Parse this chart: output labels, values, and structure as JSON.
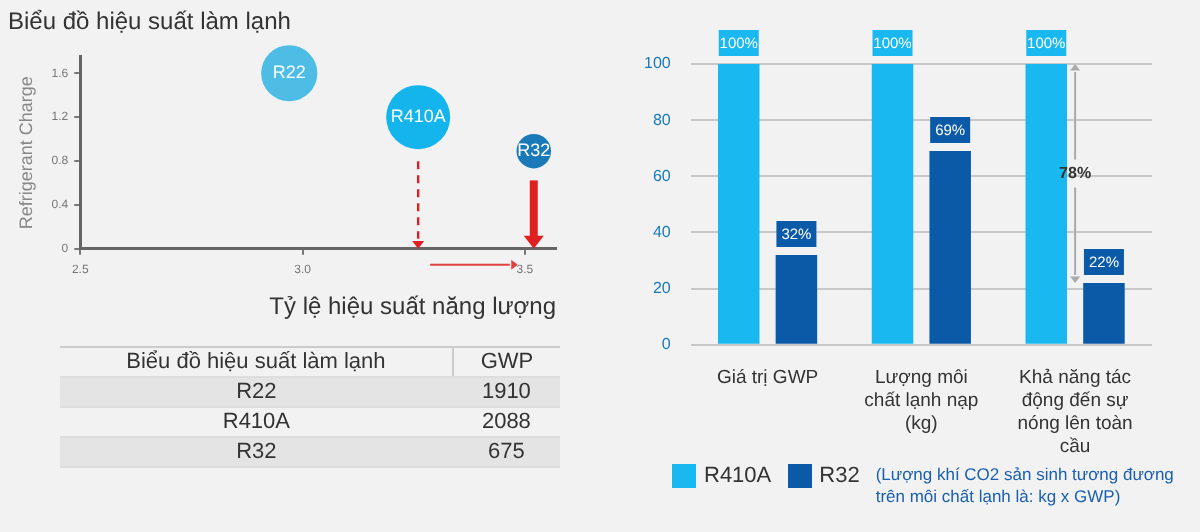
{
  "chart_data": [
    {
      "type": "bubble",
      "title": "Biểu đồ hiệu suất làm lạnh",
      "xlabel": "Tỷ lệ hiệu suất năng lượng",
      "ylabel": "Refrigerant Charge",
      "xlim": [
        2.5,
        3.57
      ],
      "xticks": [
        {
          "value": 2.5,
          "label": "2.5"
        },
        {
          "value": 3,
          "label": "3.0"
        },
        {
          "value": 3.5,
          "label": "3.5"
        }
      ],
      "ylim": [
        0,
        1.75
      ],
      "yticks": [
        0,
        0.4,
        0.8,
        1.2,
        1.6
      ],
      "grid": false,
      "legend": false,
      "series": [
        {
          "name": "R22",
          "color": "#4dbde6",
          "x": [
            2.97
          ],
          "values": [
            1.6
          ],
          "sizes": [
            0.77
          ]
        },
        {
          "name": "R410A",
          "color": "#14b4ec",
          "x": [
            3.26
          ],
          "values": [
            1.2
          ],
          "sizes": [
            1
          ]
        },
        {
          "name": "R32",
          "color": "#1a7ab8",
          "x": [
            3.52
          ],
          "values": [
            0.89
          ],
          "sizes": [
            0.29
          ]
        }
      ]
    },
    {
      "type": "other",
      "data_labels": true,
      "xlabel": "Biểu đồ hiệu suất làm lạnh",
      "ylabel": "GWP",
      "categories": [
        "R22",
        "R410A",
        "R32"
      ],
      "values": [
        1910,
        2088,
        675
      ]
    },
    {
      "type": "bar",
      "categories": [
        "Giá trị GWP",
        "Lượng môi chất lạnh nạp (kg)",
        "Khả năng tác động đến sự nóng lên toàn cầu"
      ],
      "ylim": [
        0,
        100
      ],
      "yticks": [
        0,
        20,
        40,
        60,
        80,
        100
      ],
      "grid": "y",
      "legend": "bottom",
      "series": [
        {
          "name": "R410A",
          "color": "#1ab8f0",
          "values": [
            100,
            100,
            100
          ],
          "value_labels": [
            "100%",
            "100%",
            "100%"
          ]
        },
        {
          "name": "R32",
          "color": "#0b5aa8",
          "values": [
            32,
            69,
            22
          ],
          "value_labels": [
            "32%",
            "69%",
            "22%"
          ]
        }
      ],
      "annotations": [
        {
          "text": "78%",
          "x": "Khả năng tác động đến sự nóng lên toàn cầu",
          "y": 61
        },
        "(Lượng khí CO2 sản sinh tương đương trên môi chất lạnh là: kg x GWP)"
      ]
    }
  ]
}
